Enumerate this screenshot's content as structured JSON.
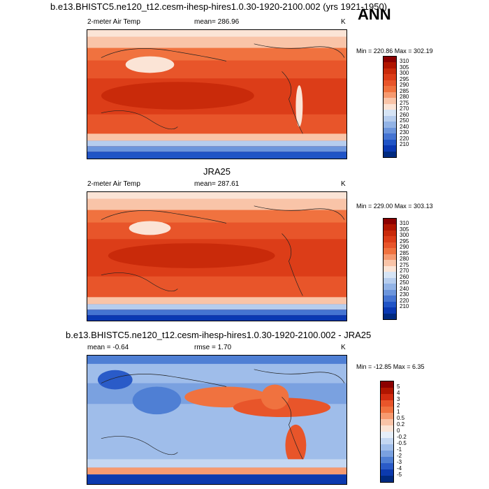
{
  "panels": [
    {
      "title": "b.e13.BHISTC5.ne120_t12.cesm-ihesp-hires1.0.30-1920-2100.002 (yrs 1921-1950)",
      "left_label": "2-meter Air Temp",
      "center_label": "mean= 286.96",
      "units": "K",
      "minmax": "Min = 220.86 Max = 302.19",
      "colorbar": {
        "labels": [
          "310",
          "305",
          "300",
          "295",
          "290",
          "285",
          "280",
          "275",
          "270",
          "260",
          "250",
          "240",
          "230",
          "220",
          "210"
        ],
        "colors": [
          "#8b0000",
          "#b01500",
          "#c92a0a",
          "#dc3d18",
          "#e8552a",
          "#f0723f",
          "#f69a70",
          "#f9c4a8",
          "#fbe4d6",
          "#d6e4f5",
          "#b6cdee",
          "#92b3e6",
          "#6c95dc",
          "#4574d2",
          "#2054c6",
          "#0a38b2",
          "#002a80"
        ]
      }
    },
    {
      "title": "JRA25",
      "left_label": "2-meter Air Temp",
      "center_label": "mean= 287.61",
      "units": "K",
      "minmax": "Min = 229.00 Max = 303.13",
      "colorbar": {
        "labels": [
          "310",
          "305",
          "300",
          "295",
          "290",
          "285",
          "280",
          "275",
          "270",
          "260",
          "250",
          "240",
          "230",
          "220",
          "210"
        ],
        "colors": [
          "#8b0000",
          "#b01500",
          "#c92a0a",
          "#dc3d18",
          "#e8552a",
          "#f0723f",
          "#f69a70",
          "#f9c4a8",
          "#fbe4d6",
          "#d6e4f5",
          "#b6cdee",
          "#92b3e6",
          "#6c95dc",
          "#4574d2",
          "#2054c6",
          "#0a38b2",
          "#002a80"
        ]
      }
    },
    {
      "title": "b.e13.BHISTC5.ne120_t12.cesm-ihesp-hires1.0.30-1920-2100.002 - JRA25",
      "left_label": "mean =  -0.64",
      "center_label": "rmse =   1.70",
      "units": "K",
      "minmax": "Min = -12.85 Max =   6.35",
      "colorbar": {
        "labels": [
          "5",
          "4",
          "3",
          "2",
          "1",
          "0.5",
          "0.2",
          "0",
          "-0.2",
          "-0.5",
          "-1",
          "-2",
          "-3",
          "-4",
          "-5"
        ],
        "colors": [
          "#8b0000",
          "#b01500",
          "#d22c10",
          "#e8552a",
          "#f0723f",
          "#f69a70",
          "#f9c4a8",
          "#fbe4d6",
          "#e6eef9",
          "#c4d7f2",
          "#9fbdea",
          "#7aa1e0",
          "#4f7fd4",
          "#2a5bc8",
          "#0c3aae",
          "#002a80"
        ]
      }
    }
  ],
  "season": "ANN",
  "colors": {
    "warm_strong": "#c92a0a",
    "warm": "#e8552a",
    "neutral": "#f9c4a8",
    "cool": "#92b3e6",
    "cold": "#2054c6",
    "deep_cold": "#002a80"
  }
}
